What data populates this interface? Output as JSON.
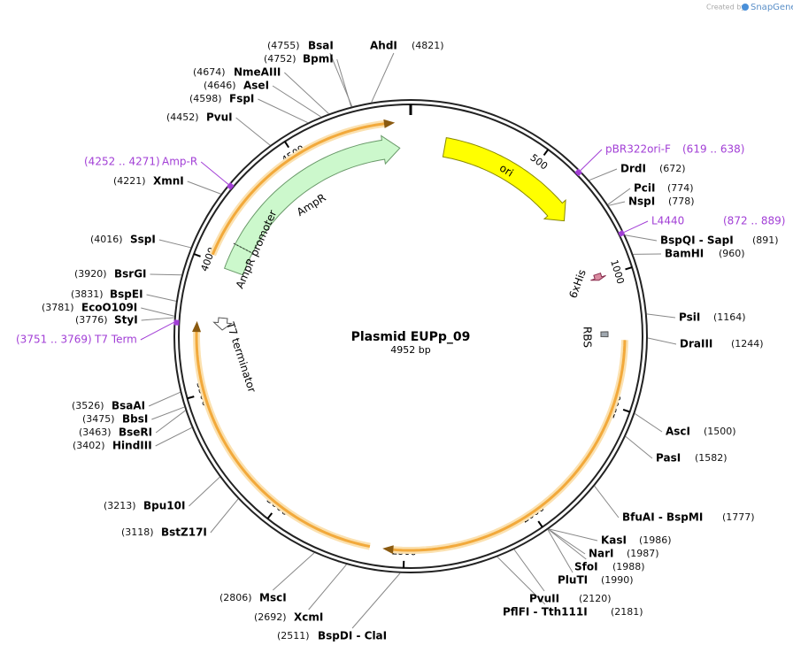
{
  "header": {
    "created_by": "Created by",
    "brand": "SnapGene"
  },
  "plasmid": {
    "name": "Plasmid EUPp_09",
    "size_bp": 4952,
    "size_label": "4952 bp"
  },
  "ticks": [
    500,
    1000,
    1500,
    2000,
    2500,
    3000,
    3500,
    4000,
    4500
  ],
  "enzymes": [
    {
      "name": "BsaI",
      "site": 4755,
      "site_label": "(4755)"
    },
    {
      "name": "AhdI",
      "site": 4821,
      "site_label": "(4821)"
    },
    {
      "name": "BpmI",
      "site": 4752,
      "site_label": "(4752)"
    },
    {
      "name": "NmeAIII",
      "site": 4674,
      "site_label": "(4674)"
    },
    {
      "name": "AseI",
      "site": 4646,
      "site_label": "(4646)"
    },
    {
      "name": "FspI",
      "site": 4598,
      "site_label": "(4598)"
    },
    {
      "name": "PvuI",
      "site": 4452,
      "site_label": "(4452)"
    },
    {
      "name": "XmnI",
      "site": 4221,
      "site_label": "(4221)"
    },
    {
      "name": "SspI",
      "site": 4016,
      "site_label": "(4016)"
    },
    {
      "name": "BsrGI",
      "site": 3920,
      "site_label": "(3920)"
    },
    {
      "name": "BspEI",
      "site": 3831,
      "site_label": "(3831)"
    },
    {
      "name": "EcoO109I",
      "site": 3781,
      "site_label": "(3781)"
    },
    {
      "name": "StyI",
      "site": 3776,
      "site_label": "(3776)"
    },
    {
      "name": "BsaAI",
      "site": 3526,
      "site_label": "(3526)"
    },
    {
      "name": "BbsI",
      "site": 3475,
      "site_label": "(3475)"
    },
    {
      "name": "BseRI",
      "site": 3463,
      "site_label": "(3463)"
    },
    {
      "name": "HindIII",
      "site": 3402,
      "site_label": "(3402)"
    },
    {
      "name": "Bpu10I",
      "site": 3213,
      "site_label": "(3213)"
    },
    {
      "name": "BstZ17I",
      "site": 3118,
      "site_label": "(3118)"
    },
    {
      "name": "MscI",
      "site": 2806,
      "site_label": "(2806)"
    },
    {
      "name": "XcmI",
      "site": 2692,
      "site_label": "(2692)"
    },
    {
      "name": "BspDI - ClaI",
      "site": 2511,
      "site_label": "(2511)"
    },
    {
      "name": "DrdI",
      "site": 672,
      "site_label": "(672)"
    },
    {
      "name": "PciI",
      "site": 774,
      "site_label": "(774)"
    },
    {
      "name": "NspI",
      "site": 778,
      "site_label": "(778)"
    },
    {
      "name": "BspQI - SapI",
      "site": 891,
      "site_label": "(891)"
    },
    {
      "name": "BamHI",
      "site": 960,
      "site_label": "(960)"
    },
    {
      "name": "PsiI",
      "site": 1164,
      "site_label": "(1164)"
    },
    {
      "name": "DraIII",
      "site": 1244,
      "site_label": "(1244)"
    },
    {
      "name": "AscI",
      "site": 1500,
      "site_label": "(1500)"
    },
    {
      "name": "PasI",
      "site": 1582,
      "site_label": "(1582)"
    },
    {
      "name": "BfuAI - BspMI",
      "site": 1777,
      "site_label": "(1777)"
    },
    {
      "name": "KasI",
      "site": 1986,
      "site_label": "(1986)"
    },
    {
      "name": "NarI",
      "site": 1987,
      "site_label": "(1987)"
    },
    {
      "name": "SfoI",
      "site": 1988,
      "site_label": "(1988)"
    },
    {
      "name": "PluTI",
      "site": 1990,
      "site_label": "(1990)"
    },
    {
      "name": "PvuII",
      "site": 2120,
      "site_label": "(2120)"
    },
    {
      "name": "PflFI - Tth111I",
      "site": 2181,
      "site_label": "(2181)"
    }
  ],
  "primers": [
    {
      "name": "pBR322ori-F",
      "range_label": "(619 .. 638)",
      "start": 619,
      "end": 638
    },
    {
      "name": "L4440",
      "range_label": "(872 .. 889)",
      "start": 872,
      "end": 889
    },
    {
      "name": "Amp-R",
      "range_label": "(4252 .. 4271)",
      "start": 4252,
      "end": 4271
    },
    {
      "name": "T7 Term",
      "range_label": "(3751 .. 3769)",
      "start": 3751,
      "end": 3769
    }
  ],
  "features": [
    {
      "name": "ori",
      "start": 140,
      "end": 730,
      "color": "#ffff00"
    },
    {
      "name": "AmpR",
      "start": 4095,
      "end": 4907,
      "color": "#ccf8cc"
    },
    {
      "name": "AmpR promoter",
      "start": 3990,
      "end": 4095,
      "color": "#ccf8cc"
    },
    {
      "name": "T7 terminator",
      "start": 3740,
      "end": 3790,
      "color": "#ffffff"
    },
    {
      "name": "6xHis",
      "start": 985,
      "end": 1010,
      "color": "#d98aa0"
    },
    {
      "name": "RBS",
      "start": 1220,
      "end": 1240,
      "color": "#a0a8b0"
    }
  ],
  "orfs": [
    {
      "start": 4022,
      "end": 4894,
      "color": "#f2a93b"
    },
    {
      "start": 1252,
      "end": 2580,
      "color": "#f2a93b"
    },
    {
      "start": 2627,
      "end": 3770,
      "color": "#f2a93b"
    }
  ]
}
